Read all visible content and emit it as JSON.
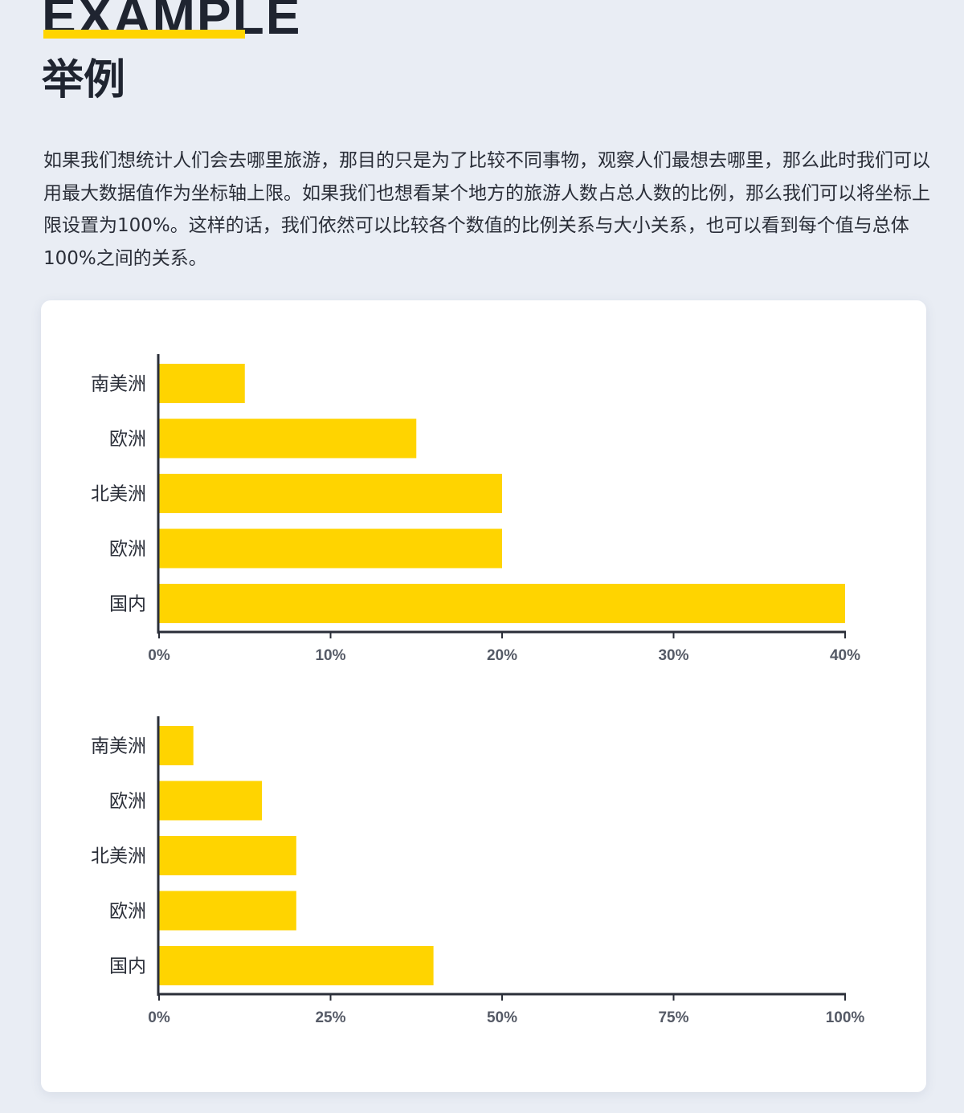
{
  "header": {
    "title_en": "EXAMPLE",
    "title_zh": "举例"
  },
  "description": "如果我们想统计人们会去哪里旅游，那目的只是为了比较不同事物，观察人们最想去哪里，那么此时我们可以用最大数据值作为坐标轴上限。如果我们也想看某个地方的旅游人数占总人数的比例，那么我们可以将坐标上限设置为100%。这样的话，我们依然可以比较各个数值的比例关系与大小关系，也可以看到每个值与总体100%之间的关系。",
  "colors": {
    "bar": "#ffd400",
    "axis": "#2a2e38",
    "accent": "#ffd400"
  },
  "chart_data": [
    {
      "type": "bar",
      "orientation": "horizontal",
      "categories": [
        "南美洲",
        "欧洲",
        "北美洲",
        "欧洲",
        "国内"
      ],
      "values": [
        5,
        15,
        20,
        20,
        40
      ],
      "xlim": [
        0,
        40
      ],
      "xticks": [
        0,
        10,
        20,
        30,
        40
      ],
      "xtick_labels": [
        "0%",
        "10%",
        "20%",
        "30%",
        "40%"
      ],
      "title": "",
      "xlabel": "",
      "ylabel": "",
      "grid": false,
      "legend": "none"
    },
    {
      "type": "bar",
      "orientation": "horizontal",
      "categories": [
        "南美洲",
        "欧洲",
        "北美洲",
        "欧洲",
        "国内"
      ],
      "values": [
        5,
        15,
        20,
        20,
        40
      ],
      "xlim": [
        0,
        100
      ],
      "xticks": [
        0,
        25,
        50,
        75,
        100
      ],
      "xtick_labels": [
        "0%",
        "25%",
        "50%",
        "75%",
        "100%"
      ],
      "title": "",
      "xlabel": "",
      "ylabel": "",
      "grid": false,
      "legend": "none"
    }
  ]
}
